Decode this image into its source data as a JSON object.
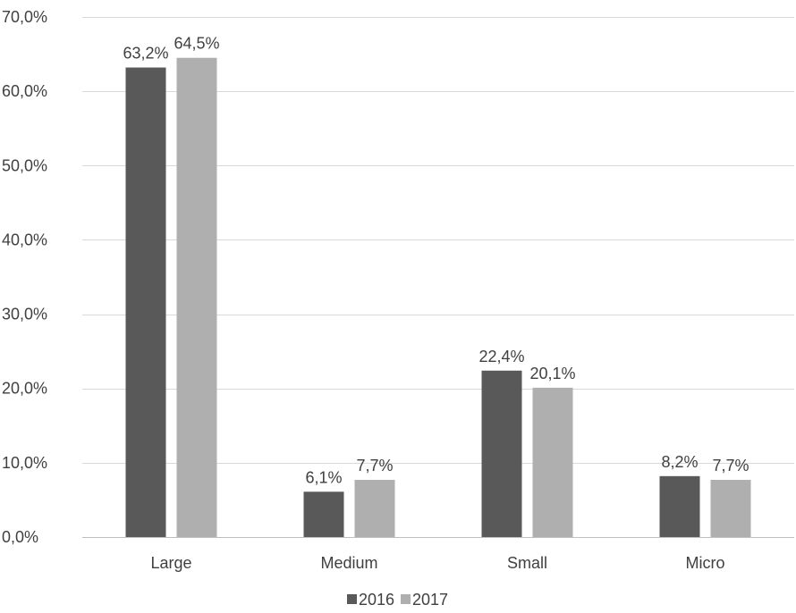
{
  "chart_data": {
    "type": "bar",
    "title": "",
    "xlabel": "",
    "ylabel": "",
    "categories": [
      "Large",
      "Medium",
      "Small",
      "Micro"
    ],
    "series": [
      {
        "name": "2016",
        "color": "#595959",
        "values": [
          63.2,
          6.1,
          22.4,
          8.2
        ],
        "labels": [
          "63,2%",
          "6,1%",
          "22,4%",
          "8,2%"
        ]
      },
      {
        "name": "2017",
        "color": "#afafaf",
        "values": [
          64.5,
          7.7,
          20.1,
          7.7
        ],
        "labels": [
          "64,5%",
          "7,7%",
          "20,1%",
          "7,7%"
        ]
      }
    ],
    "ylim": [
      0,
      70
    ],
    "yticks": [
      0,
      10,
      20,
      30,
      40,
      50,
      60,
      70
    ],
    "ytick_labels": [
      "0,0%",
      "10,0%",
      "20,0%",
      "30,0%",
      "40,0%",
      "50,0%",
      "60,0%",
      "70,0%"
    ],
    "grid": true,
    "legend_position": "bottom"
  }
}
